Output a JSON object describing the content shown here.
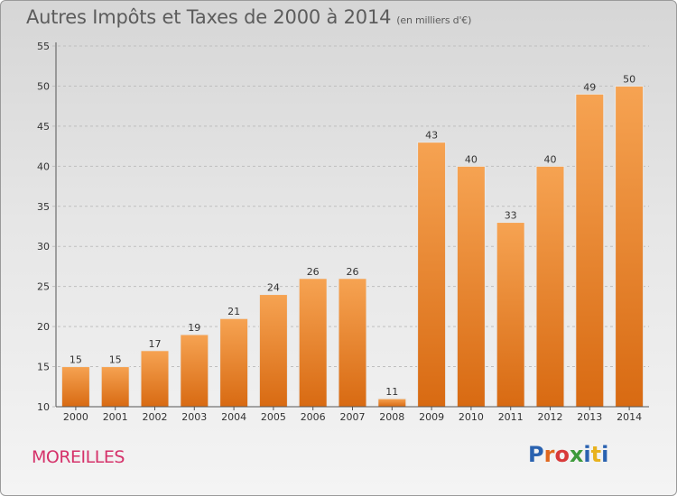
{
  "header": {
    "title": "Autres Impôts et Taxes de 2000 à 2014",
    "subtitle": "(en milliers d'€)"
  },
  "footer": {
    "place": "MOREILLES",
    "brand": "Proxiti",
    "brand_colors": [
      "#2a62b0",
      "#e0681f",
      "#d83a3a",
      "#3d9a3a",
      "#2a62b0",
      "#e8b21e",
      "#2a62b0"
    ]
  },
  "colors": {
    "bar_light": "#f6a352",
    "bar_dark": "#d86a12",
    "grid": "#bfbfbf",
    "axis_text": "#333333"
  },
  "chart_data": {
    "type": "bar",
    "categories": [
      "2000",
      "2001",
      "2002",
      "2003",
      "2004",
      "2005",
      "2006",
      "2007",
      "2008",
      "2009",
      "2010",
      "2011",
      "2012",
      "2013",
      "2014"
    ],
    "values": [
      15,
      15,
      17,
      19,
      21,
      24,
      26,
      26,
      11,
      43,
      40,
      33,
      40,
      49,
      50
    ],
    "data_labels": [
      "15",
      "15",
      "17",
      "19",
      "21",
      "24",
      "26",
      "26",
      "11",
      "43",
      "40",
      "33",
      "40",
      "49",
      "50"
    ],
    "yticks": [
      "10",
      "15",
      "20",
      "25",
      "30",
      "35",
      "40",
      "45",
      "50",
      "55"
    ],
    "ylim": [
      10,
      55
    ],
    "grid": true
  }
}
